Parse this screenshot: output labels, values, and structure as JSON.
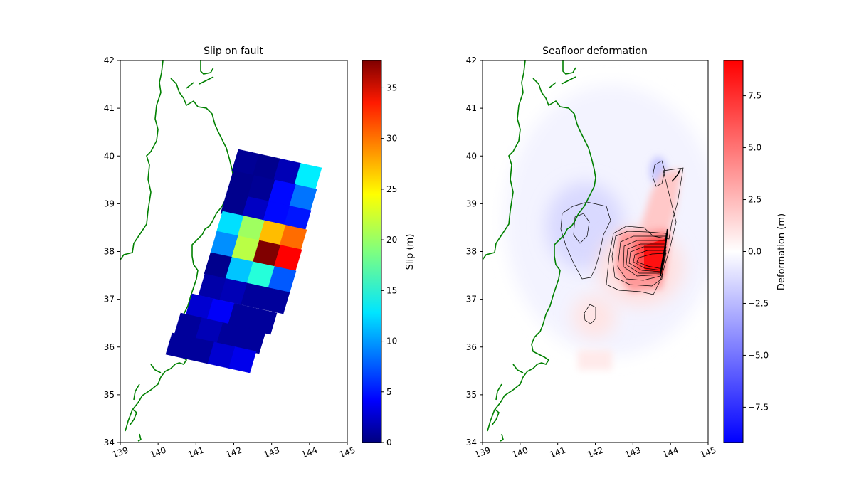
{
  "chart_data": [
    {
      "type": "heatmap",
      "title": "Slip on fault",
      "xlim": [
        139,
        145
      ],
      "ylim": [
        34,
        42
      ],
      "xticks": [
        "139",
        "140",
        "141",
        "142",
        "143",
        "144",
        "145"
      ],
      "yticks": [
        "34",
        "35",
        "36",
        "37",
        "38",
        "39",
        "40",
        "41",
        "42"
      ],
      "coastline_color": "#008000",
      "colorbar": {
        "label": "Slip (m)",
        "colormap": "jet",
        "range": [
          0,
          37.7
        ],
        "ticks": [
          "0",
          "5",
          "10",
          "15",
          "20",
          "25",
          "30",
          "35"
        ]
      },
      "subfault_rows": [
        {
          "values": [
            0.8,
            0.5,
            2.0,
            13.5
          ]
        },
        {
          "values": [
            0.5,
            0.8,
            5.0,
            9.0
          ]
        },
        {
          "values": [
            0.5,
            2.5,
            5.0,
            5.5
          ]
        },
        {
          "values": [
            13.0,
            20.0,
            26.0,
            29.0
          ]
        },
        {
          "values": [
            10.0,
            21.0,
            37.7,
            33.0
          ]
        },
        {
          "values": [
            0.5,
            12.0,
            15.5,
            8.0
          ]
        },
        {
          "values": [
            1.5,
            2.0,
            1.0,
            1.0
          ]
        },
        {
          "values": [
            3.0,
            4.5,
            1.0,
            1.0
          ]
        },
        {
          "values": [
            1.0,
            2.0,
            1.0,
            1.0
          ]
        },
        {
          "values": [
            1.0,
            1.0,
            3.0,
            4.0
          ]
        }
      ]
    },
    {
      "type": "heatmap",
      "title": "Seafloor deformation",
      "xlim": [
        139,
        145
      ],
      "ylim": [
        34,
        42
      ],
      "xticks": [
        "139",
        "140",
        "141",
        "142",
        "143",
        "144",
        "145"
      ],
      "yticks": [
        "34",
        "35",
        "36",
        "37",
        "38",
        "39",
        "40",
        "41",
        "42"
      ],
      "colorbar": {
        "label": "Deformation (m)",
        "colormap": "bwr",
        "range": [
          -9.2,
          9.2
        ],
        "ticks": [
          "−7.5",
          "−5.0",
          "−2.5",
          "0.0",
          "2.5",
          "5.0",
          "7.5"
        ]
      },
      "max_uplift_m": 9.2,
      "max_subsidence_m": -2.5
    }
  ]
}
